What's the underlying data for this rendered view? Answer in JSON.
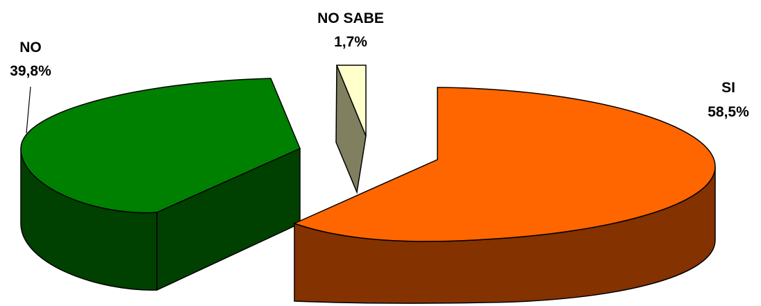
{
  "chart_data": {
    "type": "pie",
    "style": "3d-exploded",
    "title": "",
    "slices": [
      {
        "label": "SI",
        "value_text": "58,5%",
        "value": 58.5,
        "top_color": "#ff6600",
        "side_color": "#843200"
      },
      {
        "label": "NO",
        "value_text": "39,8%",
        "value": 39.8,
        "top_color": "#008000",
        "side_color": "#004000"
      },
      {
        "label": "NO SABE",
        "value_text": "1,7%",
        "value": 1.7,
        "top_color": "#ffffcc",
        "side_color": "#808060"
      }
    ],
    "legend": "none",
    "labels": "outside"
  }
}
